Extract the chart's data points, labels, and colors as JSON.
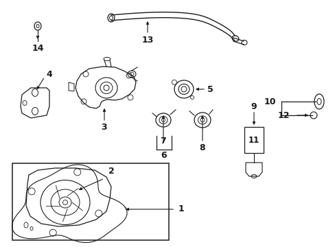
{
  "bg_color": "#ffffff",
  "line_color": "#1a1a1a",
  "text_color": "#1a1a1a",
  "figsize": [
    4.89,
    3.6
  ],
  "dpi": 100
}
